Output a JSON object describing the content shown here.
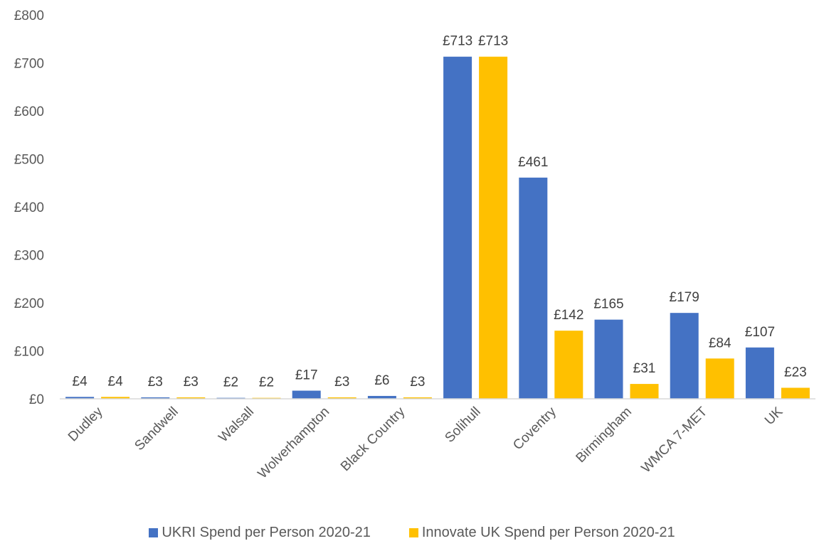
{
  "chart_data": {
    "type": "bar",
    "title": "",
    "xlabel": "",
    "ylabel": "",
    "categories": [
      "Dudley",
      "Sandwell",
      "Walsall",
      "Wolverhampton",
      "Black Country",
      "Solihull",
      "Coventry",
      "Birmingham",
      "WMCA 7-MET",
      "UK"
    ],
    "series": [
      {
        "name": "UKRI Spend per Person 2020-21",
        "color": "#4472C4",
        "values": [
          4,
          3,
          2,
          17,
          6,
          713,
          461,
          165,
          179,
          107
        ],
        "labels": [
          "£4",
          "£3",
          "£2",
          "£17",
          "£6",
          "£713",
          "£461",
          "£165",
          "£179",
          "£107"
        ]
      },
      {
        "name": "Innovate UK Spend per Person 2020-21",
        "color": "#FFC000",
        "values": [
          4,
          3,
          2,
          3,
          3,
          713,
          142,
          31,
          84,
          23
        ],
        "labels": [
          "£4",
          "£3",
          "£2",
          "£3",
          "£3",
          "£713",
          "£142",
          "£31",
          "£84",
          "£23"
        ]
      }
    ],
    "ylim": [
      0,
      800
    ],
    "yticks": [
      0,
      100,
      200,
      300,
      400,
      500,
      600,
      700,
      800
    ],
    "ytick_labels": [
      "£0",
      "£100",
      "£200",
      "£300",
      "£400",
      "£500",
      "£600",
      "£700",
      "£800"
    ],
    "grid": false,
    "legend_position": "bottom"
  }
}
